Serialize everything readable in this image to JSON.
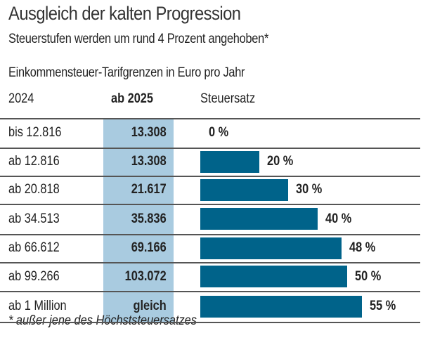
{
  "title": "Ausgleich der kalten Progression",
  "subtitle": "Steuerstufen werden um rund 4 Prozent angehoben*",
  "unit_label": "Einkommensteuer-Tarifgrenzen in Euro pro Jahr",
  "footnote": "* außer jene des Höchststeuersatzes",
  "colors": {
    "bar": "#00638a",
    "highlight_column": "#a9cbe0"
  },
  "chart_data": {
    "type": "bar",
    "orientation": "horizontal",
    "title": "Ausgleich der kalten Progression",
    "subtitle": "Steuerstufen werden um rund 4 Prozent angehoben*",
    "columns": [
      "2024",
      "ab 2025",
      "Steuersatz"
    ],
    "rows": [
      {
        "y2024": "bis 12.816",
        "y2025": "13.308",
        "rate": 0,
        "rate_label": "0 %"
      },
      {
        "y2024": "ab 12.816",
        "y2025": "13.308",
        "rate": 20,
        "rate_label": "20 %"
      },
      {
        "y2024": "ab 20.818",
        "y2025": "21.617",
        "rate": 30,
        "rate_label": "30 %"
      },
      {
        "y2024": "ab 34.513",
        "y2025": "35.836",
        "rate": 40,
        "rate_label": "40 %"
      },
      {
        "y2024": "ab 66.612",
        "y2025": "69.166",
        "rate": 48,
        "rate_label": "48 %"
      },
      {
        "y2024": "ab 99.266",
        "y2025": "103.072",
        "rate": 50,
        "rate_label": "50 %"
      },
      {
        "y2024": "ab 1 Million",
        "y2025": "gleich",
        "rate": 55,
        "rate_label": "55 %"
      }
    ],
    "categories": [
      "bis 12.816",
      "ab 12.816",
      "ab 20.818",
      "ab 34.513",
      "ab 66.612",
      "ab 99.266",
      "ab 1 Million"
    ],
    "values": [
      0,
      20,
      30,
      40,
      48,
      50,
      55
    ],
    "xlabel": "Steuersatz",
    "ylabel": "",
    "xlim": [
      0,
      55
    ],
    "grid": false,
    "legend": "none"
  }
}
